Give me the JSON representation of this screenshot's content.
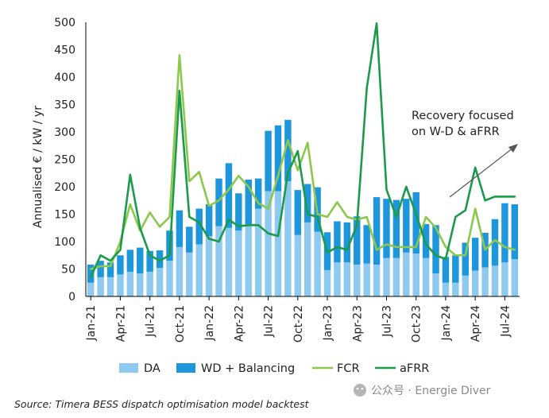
{
  "chart_data": {
    "type": "bar",
    "ylabel": "Annualised € / kW / yr",
    "xlabel": "",
    "ylim": [
      0,
      500
    ],
    "yticks": [
      0,
      50,
      100,
      150,
      200,
      250,
      300,
      350,
      400,
      450,
      500
    ],
    "x_tick_labels": [
      "Jan-21",
      "Apr-21",
      "Jul-21",
      "Oct-21",
      "Jan-22",
      "Apr-22",
      "Jul-22",
      "Oct-22",
      "Jan-23",
      "Apr-23",
      "Jul-23",
      "Oct-23",
      "Jan-24",
      "Apr-24",
      "Jul-24"
    ],
    "categories": [
      "Jan-21",
      "Feb-21",
      "Mar-21",
      "Apr-21",
      "May-21",
      "Jun-21",
      "Jul-21",
      "Aug-21",
      "Sep-21",
      "Oct-21",
      "Nov-21",
      "Dec-21",
      "Jan-22",
      "Feb-22",
      "Mar-22",
      "Apr-22",
      "May-22",
      "Jun-22",
      "Jul-22",
      "Aug-22",
      "Sep-22",
      "Oct-22",
      "Nov-22",
      "Dec-22",
      "Jan-23",
      "Feb-23",
      "Mar-23",
      "Apr-23",
      "May-23",
      "Jun-23",
      "Jul-23",
      "Aug-23",
      "Sep-23",
      "Oct-23",
      "Nov-23",
      "Dec-23",
      "Jan-24",
      "Feb-24",
      "Mar-24",
      "Apr-24",
      "May-24",
      "Jun-24",
      "Jul-24",
      "Aug-24"
    ],
    "series": [
      {
        "name": "DA",
        "kind": "bar",
        "color": "#8ecaf0",
        "values": [
          25,
          35,
          35,
          40,
          45,
          42,
          45,
          52,
          65,
          90,
          80,
          95,
          110,
          128,
          125,
          120,
          128,
          160,
          192,
          192,
          210,
          112,
          135,
          118,
          48,
          62,
          62,
          58,
          60,
          58,
          70,
          70,
          80,
          78,
          70,
          42,
          25,
          25,
          38,
          47,
          53,
          56,
          62,
          68
        ]
      },
      {
        "name": "WD + Balancing",
        "kind": "bar",
        "color": "#1e96db",
        "values": [
          33,
          30,
          27,
          35,
          40,
          47,
          38,
          32,
          55,
          67,
          47,
          65,
          58,
          87,
          118,
          68,
          85,
          55,
          110,
          120,
          112,
          82,
          70,
          81,
          69,
          75,
          73,
          88,
          70,
          123,
          108,
          106,
          98,
          112,
          62,
          88,
          47,
          50,
          60,
          60,
          63,
          85,
          108,
          100
        ]
      },
      {
        "name": "FCR",
        "kind": "line",
        "color": "#8cc84b",
        "values": [
          50,
          55,
          55,
          100,
          168,
          120,
          153,
          127,
          145,
          440,
          210,
          227,
          165,
          175,
          195,
          220,
          200,
          170,
          160,
          220,
          285,
          230,
          280,
          150,
          145,
          172,
          145,
          140,
          145,
          85,
          95,
          90,
          90,
          90,
          145,
          125,
          90,
          75,
          75,
          160,
          85,
          103,
          90,
          85
        ]
      },
      {
        "name": "aFRR",
        "kind": "line",
        "color": "#1b9a4a",
        "values": [
          35,
          75,
          65,
          85,
          222,
          125,
          75,
          65,
          75,
          375,
          145,
          135,
          105,
          100,
          140,
          128,
          130,
          130,
          115,
          110,
          225,
          265,
          150,
          145,
          80,
          90,
          85,
          130,
          380,
          498,
          195,
          145,
          200,
          150,
          95,
          75,
          68,
          145,
          157,
          235,
          175,
          182,
          182,
          182
        ]
      }
    ],
    "legend": {
      "placement": "bottom",
      "items": [
        "DA",
        "WD + Balancing",
        "FCR",
        "aFRR"
      ]
    },
    "annotation": {
      "lines": [
        "Recovery focused",
        "on W-D & aFRR"
      ]
    },
    "source": "Source: Timera BESS dispatch optimisation model backtest",
    "watermark": "公众号 · Energie Diver",
    "colors": {
      "axis": "#000000",
      "text": "#222222",
      "arrow": "#555555"
    }
  }
}
